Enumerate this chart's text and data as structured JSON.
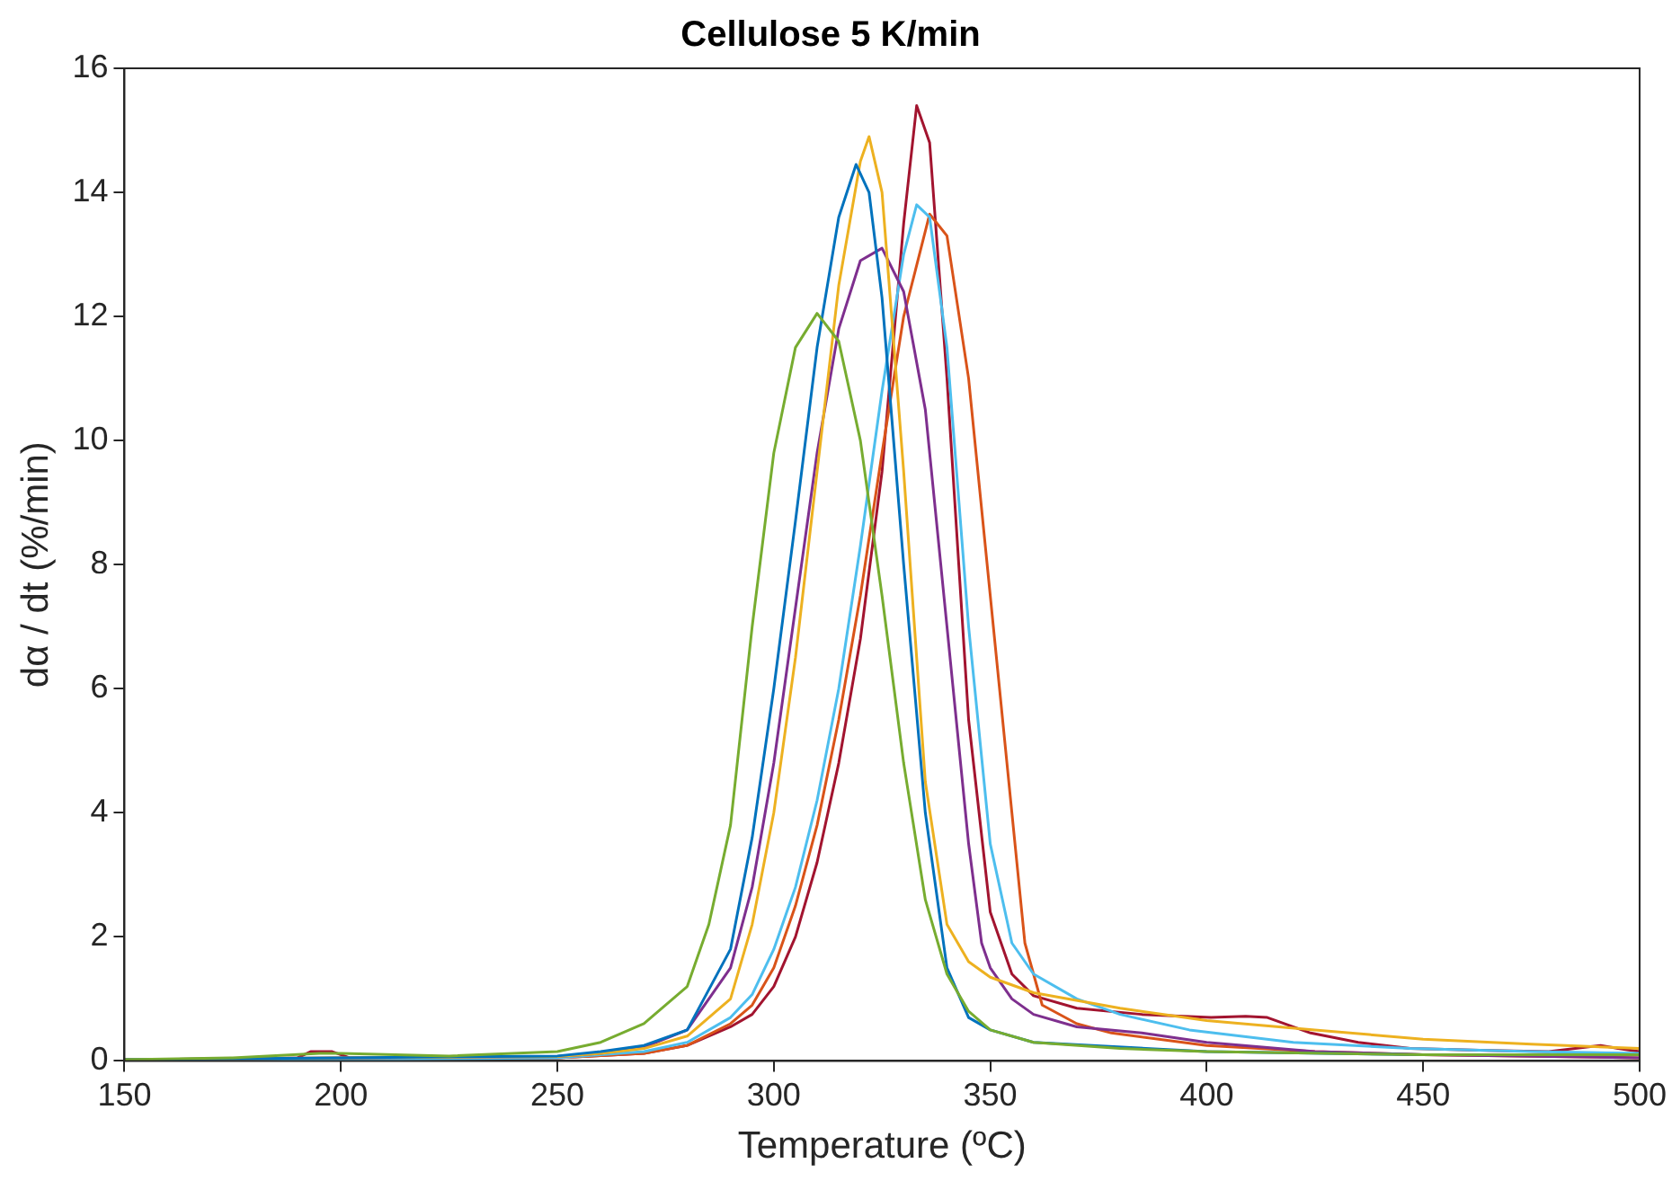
{
  "chart_data": {
    "type": "line",
    "title": "Cellulose 5 K/min",
    "xlabel": "Temperature (ºC)",
    "ylabel": "dα / dt (%/min)",
    "xlim": [
      150,
      500
    ],
    "xticks": [
      150,
      200,
      250,
      300,
      350,
      400,
      450,
      500
    ],
    "ylim": [
      0,
      16
    ],
    "yticks": [
      0,
      2,
      4,
      6,
      8,
      10,
      12,
      14,
      16
    ],
    "grid": false,
    "legend": false,
    "marker": "none",
    "line_style": "solid",
    "series": [
      {
        "color": "#77ac30",
        "x": [
          150,
          175,
          195,
          200,
          225,
          250,
          260,
          270,
          280,
          285,
          290,
          295,
          300,
          305,
          310,
          315,
          320,
          325,
          330,
          335,
          340,
          345,
          350,
          360,
          380,
          400,
          450,
          500
        ],
        "values": [
          0.02,
          0.05,
          0.12,
          0.12,
          0.08,
          0.15,
          0.3,
          0.6,
          1.2,
          2.2,
          3.8,
          7.0,
          9.8,
          11.5,
          12.05,
          11.6,
          10.0,
          7.5,
          4.8,
          2.6,
          1.4,
          0.8,
          0.5,
          0.3,
          0.2,
          0.15,
          0.1,
          0.1
        ]
      },
      {
        "color": "#0072bd",
        "x": [
          150,
          200,
          250,
          260,
          270,
          280,
          290,
          295,
          300,
          305,
          310,
          315,
          319,
          322,
          325,
          330,
          335,
          340,
          345,
          350,
          360,
          400,
          450,
          500
        ],
        "values": [
          0.02,
          0.05,
          0.08,
          0.15,
          0.25,
          0.5,
          1.8,
          3.6,
          6.0,
          8.7,
          11.5,
          13.6,
          14.45,
          14.0,
          12.3,
          8.0,
          4.0,
          1.5,
          0.7,
          0.5,
          0.3,
          0.15,
          0.1,
          0.1
        ]
      },
      {
        "color": "#edb120",
        "x": [
          150,
          200,
          250,
          260,
          270,
          280,
          290,
          295,
          300,
          305,
          310,
          315,
          320,
          322,
          325,
          330,
          335,
          340,
          345,
          350,
          360,
          380,
          400,
          425,
          450,
          475,
          500
        ],
        "values": [
          0.02,
          0.05,
          0.07,
          0.12,
          0.2,
          0.4,
          1.0,
          2.2,
          4.0,
          6.5,
          9.5,
          12.5,
          14.5,
          14.9,
          14.0,
          9.5,
          4.5,
          2.2,
          1.6,
          1.35,
          1.1,
          0.85,
          0.65,
          0.5,
          0.35,
          0.27,
          0.2
        ]
      },
      {
        "color": "#7e2f8e",
        "x": [
          150,
          200,
          250,
          260,
          270,
          280,
          290,
          295,
          300,
          305,
          310,
          315,
          320,
          325,
          330,
          335,
          340,
          345,
          348,
          350,
          355,
          360,
          370,
          385,
          400,
          425,
          450,
          500
        ],
        "values": [
          0.02,
          0.05,
          0.07,
          0.12,
          0.22,
          0.5,
          1.5,
          2.8,
          4.8,
          7.3,
          9.8,
          11.8,
          12.9,
          13.1,
          12.4,
          10.5,
          7.0,
          3.5,
          1.9,
          1.5,
          1.0,
          0.75,
          0.55,
          0.45,
          0.3,
          0.15,
          0.1,
          0.05
        ]
      },
      {
        "color": "#4dbeee",
        "x": [
          150,
          200,
          250,
          270,
          280,
          290,
          295,
          300,
          305,
          310,
          315,
          320,
          325,
          330,
          333,
          336,
          340,
          345,
          350,
          355,
          360,
          370,
          380,
          396,
          420,
          447,
          475,
          500
        ],
        "values": [
          0.02,
          0.02,
          0.05,
          0.15,
          0.3,
          0.7,
          1.07,
          1.8,
          2.8,
          4.2,
          6.0,
          8.3,
          10.8,
          13.0,
          13.8,
          13.6,
          11.5,
          7.0,
          3.5,
          1.9,
          1.4,
          1.0,
          0.75,
          0.5,
          0.3,
          0.2,
          0.15,
          0.12
        ]
      },
      {
        "color": "#d95319",
        "x": [
          150,
          200,
          250,
          270,
          280,
          290,
          295,
          300,
          305,
          310,
          315,
          320,
          325,
          330,
          336,
          340,
          345,
          350,
          355,
          358,
          362,
          370,
          378,
          400,
          425,
          450,
          500
        ],
        "values": [
          0.02,
          0.03,
          0.05,
          0.12,
          0.25,
          0.6,
          0.9,
          1.5,
          2.5,
          3.8,
          5.5,
          7.5,
          9.8,
          12.0,
          13.65,
          13.3,
          11.0,
          7.5,
          4.0,
          1.9,
          0.9,
          0.6,
          0.45,
          0.25,
          0.15,
          0.1,
          0.05
        ]
      },
      {
        "color": "#a2142f",
        "x": [
          150,
          175,
          190,
          193,
          198,
          202,
          250,
          270,
          280,
          290,
          295,
          300,
          305,
          310,
          315,
          320,
          325,
          330,
          333,
          336,
          340,
          345,
          350,
          355,
          360,
          370,
          385,
          401,
          409,
          414,
          424,
          435,
          447,
          465,
          479,
          491,
          495,
          500
        ],
        "values": [
          0.02,
          0.03,
          0.05,
          0.15,
          0.15,
          0.05,
          0.05,
          0.12,
          0.25,
          0.55,
          0.75,
          1.2,
          2.0,
          3.2,
          4.8,
          6.8,
          9.5,
          13.5,
          15.4,
          14.8,
          11.0,
          5.5,
          2.4,
          1.4,
          1.05,
          0.85,
          0.75,
          0.7,
          0.72,
          0.7,
          0.45,
          0.3,
          0.2,
          0.17,
          0.15,
          0.25,
          0.2,
          0.15
        ]
      }
    ]
  }
}
